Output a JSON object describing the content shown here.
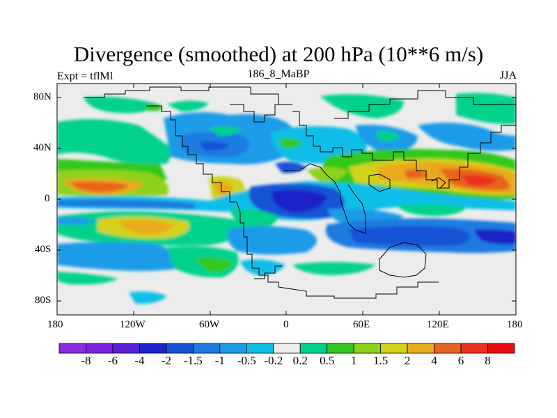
{
  "title": "Divergence (smoothed) at 200 hPa (10**6 m/s)",
  "left_subtitle": "Expt = tflMl",
  "center_subtitle": "186_8_MaBP",
  "right_subtitle": "JJA",
  "axes": {
    "x_ticks": [
      "180",
      "120W",
      "60W",
      "0",
      "60E",
      "120E",
      "180"
    ],
    "y_ticks": [
      "80N",
      "40N",
      "0",
      "40S",
      "80S"
    ]
  },
  "colorbar": {
    "labels": [
      "-8",
      "-6",
      "-4",
      "-2",
      "-1.5",
      "-1",
      "-0.5",
      "-0.2",
      "0.2",
      "0.5",
      "1",
      "1.5",
      "2",
      "4",
      "6",
      "8"
    ],
    "colors": [
      "#8a2be2",
      "#7b22e0",
      "#5a1fd6",
      "#1e22c8",
      "#1452d6",
      "#1a7be0",
      "#1c9ce8",
      "#10bfe8",
      "#ececec",
      "#00d28c",
      "#33c81e",
      "#8fd21a",
      "#d2d21a",
      "#e8aa1e",
      "#e8641e",
      "#e8321e",
      "#e80c0c"
    ]
  },
  "colors": {
    "land_outline": "#000000",
    "background": "#ffffff"
  }
}
